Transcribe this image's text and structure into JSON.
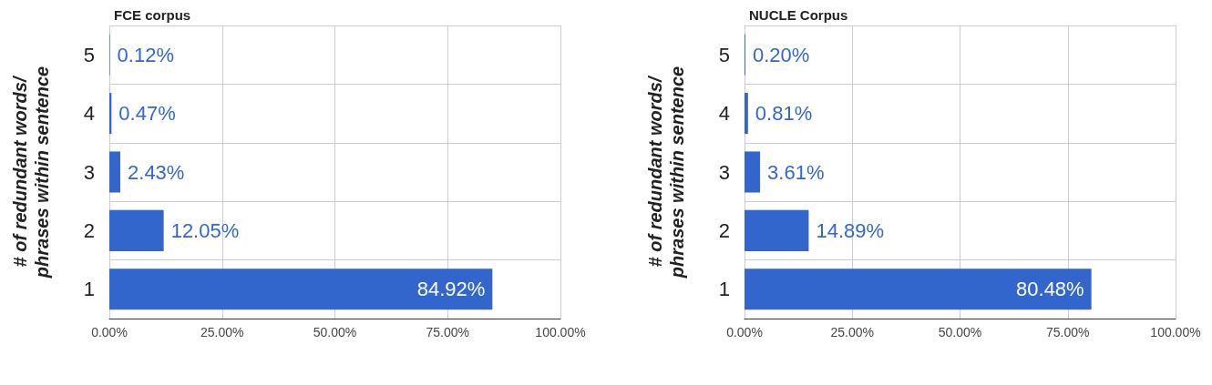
{
  "chart_data": [
    {
      "type": "bar",
      "orientation": "horizontal",
      "title": "FCE corpus",
      "ylabel": "# of redundant words/\nphrases within sentence",
      "categories": [
        "5",
        "4",
        "3",
        "2",
        "1"
      ],
      "series": [
        {
          "color": "#3366cc",
          "values": [
            0.12,
            0.47,
            2.43,
            12.05,
            84.92
          ]
        }
      ],
      "value_labels": [
        "0.12%",
        "0.47%",
        "2.43%",
        "12.05%",
        "84.92%"
      ],
      "xlim": [
        0,
        100
      ],
      "xticks": [
        {
          "value": 0,
          "label": "0.00%"
        },
        {
          "value": 25,
          "label": "25.00%"
        },
        {
          "value": 50,
          "label": "50.00%"
        },
        {
          "value": 75,
          "label": "75.00%"
        },
        {
          "value": 100,
          "label": "100.00%"
        }
      ],
      "grid": true
    },
    {
      "type": "bar",
      "orientation": "horizontal",
      "title": "NUCLE Corpus",
      "ylabel": "# of redundant words/\nphrases within sentence",
      "categories": [
        "5",
        "4",
        "3",
        "2",
        "1"
      ],
      "series": [
        {
          "color": "#3366cc",
          "values": [
            0.2,
            0.81,
            3.61,
            14.89,
            80.48
          ]
        }
      ],
      "value_labels": [
        "0.20%",
        "0.81%",
        "3.61%",
        "14.89%",
        "80.48%"
      ],
      "xlim": [
        0,
        100
      ],
      "xticks": [
        {
          "value": 0,
          "label": "0.00%"
        },
        {
          "value": 25,
          "label": "25.00%"
        },
        {
          "value": 50,
          "label": "50.00%"
        },
        {
          "value": 75,
          "label": "75.00%"
        },
        {
          "value": 100,
          "label": "100.00%"
        }
      ],
      "grid": true
    }
  ]
}
